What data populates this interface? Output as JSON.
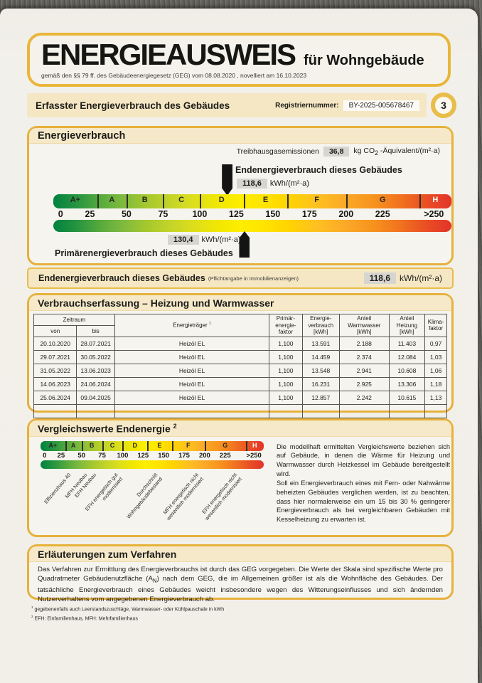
{
  "title_block": {
    "title": "ENERGIEAUSWEIS",
    "title_suffix": "für Wohngebäude",
    "law_note": "gemäß den §§ 79 ff. des Gebäudeenergiegesetz (GEG) vom 08.08.2020 , novelliert am 16.10.2023"
  },
  "header_bar": {
    "title": "Erfasster Energieverbrauch des Gebäudes",
    "registry_label": "Registriernummer:",
    "registry_value": "BY-2025-005678467",
    "page_number": "3"
  },
  "section_energieverbrauch": {
    "title": "Energieverbrauch",
    "ghg_label": "Treibhausgasemissionen",
    "ghg_value": "36,8",
    "ghg_unit_prefix": "kg CO",
    "ghg_unit_sub": "2",
    "ghg_unit_suffix": " -Äquivalent/(m²·a)",
    "end_label": "Endenergieverbrauch dieses Gebäudes",
    "end_value": "118,6",
    "end_unit": "kWh/(m²·a)",
    "primary_value": "130,4",
    "primary_unit": "kWh/(m²·a)",
    "primary_label": "Primärenergieverbrauch dieses Gebäudes"
  },
  "scale": {
    "max": 272,
    "classes": [
      {
        "label": "A+",
        "min": 0,
        "max": 30
      },
      {
        "label": "A",
        "min": 30,
        "max": 50
      },
      {
        "label": "B",
        "min": 50,
        "max": 75
      },
      {
        "label": "C",
        "min": 75,
        "max": 100
      },
      {
        "label": "D",
        "min": 100,
        "max": 130
      },
      {
        "label": "E",
        "min": 130,
        "max": 160
      },
      {
        "label": "F",
        "min": 160,
        "max": 200
      },
      {
        "label": "G",
        "min": 200,
        "max": 250
      },
      {
        "label": "H",
        "min": 250,
        "max": 272
      }
    ],
    "ticks": [
      {
        "label": "0",
        "value": 5
      },
      {
        "label": "25",
        "value": 25
      },
      {
        "label": "50",
        "value": 50
      },
      {
        "label": "75",
        "value": 75
      },
      {
        "label": "100",
        "value": 100
      },
      {
        "label": "125",
        "value": 125
      },
      {
        "label": "150",
        "value": 150
      },
      {
        "label": "175",
        "value": 175
      },
      {
        "label": "200",
        "value": 200
      },
      {
        "label": "225",
        "value": 225
      },
      {
        "label": ">250",
        "value": 260
      }
    ],
    "end_arrow_value": 118.6,
    "primary_arrow_value": 130.4
  },
  "endenergie_bar": {
    "title": "Endenergieverbrauch dieses Gebäudes",
    "note": "(Pflichtangabe in Immobilienanzeigen)",
    "value": "118,6",
    "unit": "kWh/(m²·a)"
  },
  "verbrauch_table": {
    "title": "Verbrauchserfassung – Heizung und Warmwasser",
    "headers": {
      "zeitraum": "Zeitraum",
      "von": "von",
      "bis": "bis",
      "energietraeger": "Energieträger",
      "energietraeger_sup": "1",
      "primaerfaktor": "Primär-\nenergie-\nfaktor",
      "verbrauch": "Energie-\nverbrauch\n[kWh]",
      "warmwasser": "Anteil\nWarmwasser\n[kWh]",
      "heizung": "Anteil\nHeizung\n[kWh]",
      "klimafaktor": "Klima-\nfaktor"
    },
    "rows": [
      [
        "20.10.2020",
        "28.07.2021",
        "Heizöl EL",
        "1,100",
        "13.591",
        "2.188",
        "11.403",
        "0,97"
      ],
      [
        "29.07.2021",
        "30.05.2022",
        "Heizöl EL",
        "1,100",
        "14.459",
        "2.374",
        "12.084",
        "1,03"
      ],
      [
        "31.05.2022",
        "13.06.2023",
        "Heizöl EL",
        "1,100",
        "13.548",
        "2.941",
        "10.608",
        "1,06"
      ],
      [
        "14.06.2023",
        "24.06.2024",
        "Heizöl EL",
        "1,100",
        "16.231",
        "2.925",
        "13.306",
        "1,18"
      ],
      [
        "25.06.2024",
        "09.04.2025",
        "Heizöl EL",
        "1,100",
        "12.857",
        "2.242",
        "10.615",
        "1,13"
      ],
      [
        "",
        "",
        "",
        "",
        "",
        "",
        "",
        ""
      ]
    ]
  },
  "section_vergleich": {
    "title": "Vergleichswerte Endenergie",
    "title_sup": "2",
    "labels": [
      {
        "text": "Effizienzhaus 40",
        "value": 32
      },
      {
        "text": "MFH Neubau",
        "value": 52
      },
      {
        "text": "EFH Neubau",
        "value": 63
      },
      {
        "text": "EFH energetisch gut\nmodernisiert",
        "value": 90
      },
      {
        "text": "Durchschnitt\nWohngebäudebestand",
        "value": 138
      },
      {
        "text": "MFH energetisch nicht\nwesentlich modernisiert",
        "value": 188
      },
      {
        "text": "EFH energetisch nicht\nwesentlich modernisiert",
        "value": 235
      }
    ],
    "description": [
      "Die modellhaft ermittelten Vergleichswerte beziehen sich auf Gebäude, in denen die Wärme für Heizung und Warmwasser durch Heizkessel im Gebäude bereitgestellt wird.",
      "Soll ein Energieverbrauch eines mit Fern- oder Nahwärme beheizten Gebäudes verglichen werden, ist zu beachten, dass hier normalerweise ein um 15 bis 30 % geringerer Energieverbrauch als bei vergleichbaren Gebäuden mit Kesselheizung zu erwarten ist."
    ]
  },
  "section_erlaeuterungen": {
    "title": "Erläuterungen zum Verfahren",
    "text_part1": "Das Verfahren zur Ermittlung des Energieverbrauchs ist durch das GEG vorgegeben. Die Werte der Skala sind spezifische Werte pro Quadratmeter Gebäudenutzfläche (A",
    "text_sub": "N",
    "text_part2": ") nach dem GEG, die im Allgemeinen größer ist als die Wohnfläche des Gebäudes. Der tatsächliche Energieverbrauch eines Gebäudes weicht insbesondere wegen des Witterungseinflusses und sich ändernden Nutzerverhaltens vom angegebenen Energieverbrauch ab."
  },
  "footnotes": [
    {
      "sup": "1",
      "text": " gegebenenfalls auch Leerstandszuschläge, Warmwasser- oder Kühlpauschale in kWh"
    },
    {
      "sup": "2",
      "text": " EFH: Einfamilienhaus, MFH: Mehrfamilienhaus"
    }
  ],
  "colors": {
    "gold_border": "#e6b13c",
    "cream_header": "#f6e9c9",
    "value_box_gray": "#d7d5cf",
    "scale_green": "#00823f",
    "scale_yellow": "#ffe400",
    "scale_red": "#e2342a"
  }
}
